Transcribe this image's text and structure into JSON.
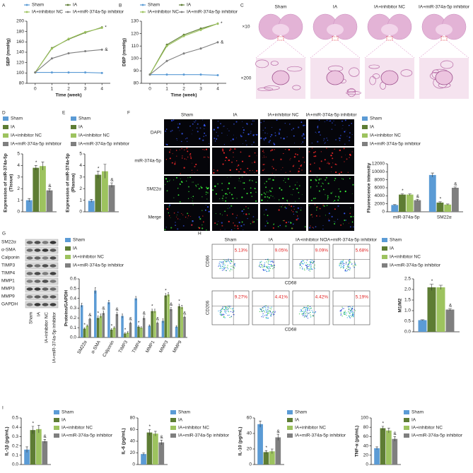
{
  "panel_labels": [
    "A",
    "B",
    "C",
    "D",
    "E",
    "F",
    "G",
    "H",
    "I"
  ],
  "histology": {
    "columns": [
      "Sham",
      "IA",
      "IA+inhibitor NC",
      "IA+miR-374a-5p inhibitor"
    ],
    "rows": [
      "×10",
      "×200"
    ]
  },
  "fluorescence": {
    "columns": [
      "Sham",
      "IA",
      "IA+inhibitor NC",
      "IA+miR-374a-5p inhibitor"
    ],
    "rows": [
      "DAPI",
      "miR-374a-5p",
      "SM22α",
      "Merge"
    ]
  },
  "western_blot": {
    "proteins": [
      "SM22α",
      "α-SMA",
      "Calponin",
      "TIMP3",
      "TIMP4",
      "MMP1",
      "MMP3",
      "MMP9",
      "GAPDH"
    ],
    "groups": [
      "Sham",
      "IA",
      "IA+inhibitor NC",
      "IA+miR-374a-5p inhibitor"
    ]
  },
  "flow": {
    "columns": [
      "Sham",
      "IA",
      "IA+inhibitor NC",
      "IA+miR-374a-5p inhibitor"
    ],
    "y_labels": [
      "CD86",
      "CD206"
    ],
    "x_label": "CD68",
    "percentages": [
      [
        "5.13%",
        "9.05%",
        "9.09%",
        "5.68%"
      ],
      [
        "9.27%",
        "4.41%",
        "4.42%",
        "5.19%"
      ]
    ]
  },
  "chart_data": [
    {
      "type": "line",
      "ylabel": "SBP (mmHg)",
      "xlabel": "Time (week)",
      "x": [
        0,
        1,
        2,
        3,
        4
      ],
      "xlim": [
        -0.5,
        4.5
      ],
      "xticks": [
        0,
        1,
        2,
        3,
        4
      ],
      "ylim": [
        80,
        200
      ],
      "yticks": [
        80,
        100,
        120,
        140,
        160,
        180,
        200
      ],
      "series": [
        {
          "name": "Sham",
          "color": "#5b9bd5",
          "values": [
            101,
            101,
            101,
            101,
            100
          ],
          "errors": [
            1,
            1,
            1,
            1,
            1
          ]
        },
        {
          "name": "IA",
          "color": "#5e7d34",
          "values": [
            101,
            148,
            165,
            178,
            188
          ],
          "errors": [
            1,
            2,
            2,
            2,
            2
          ],
          "markers": [
            null,
            null,
            null,
            null,
            "*"
          ]
        },
        {
          "name": "IA+inhibitor NC",
          "color": "#9dc35f",
          "values": [
            101,
            147,
            166,
            179,
            187
          ],
          "errors": [
            1,
            2,
            2,
            2,
            2
          ]
        },
        {
          "name": "IA+miR-374a-5p inhibitor",
          "color": "#7f7f7f",
          "values": [
            101,
            128,
            138,
            142,
            145
          ],
          "errors": [
            1,
            2,
            2,
            2,
            2
          ],
          "markers": [
            null,
            null,
            null,
            null,
            "&"
          ]
        }
      ]
    },
    {
      "type": "line",
      "ylabel": "DBP (mmHg)",
      "xlabel": "Time (week)",
      "x": [
        0,
        1,
        2,
        3,
        4
      ],
      "xlim": [
        -0.5,
        4.5
      ],
      "xticks": [
        0,
        1,
        2,
        3,
        4
      ],
      "ylim": [
        80,
        130
      ],
      "yticks": [
        80,
        90,
        100,
        110,
        120,
        130
      ],
      "series": [
        {
          "name": "Sham",
          "color": "#5b9bd5",
          "values": [
            87,
            87,
            87,
            87,
            86.5
          ],
          "errors": [
            0.5,
            0.5,
            0.5,
            0.5,
            0.5
          ]
        },
        {
          "name": "IA",
          "color": "#5e7d34",
          "values": [
            87,
            111,
            119,
            124,
            128
          ],
          "errors": [
            0.5,
            1,
            1,
            1,
            1
          ],
          "markers": [
            null,
            null,
            null,
            null,
            "*"
          ]
        },
        {
          "name": "IA+inhibitor NC",
          "color": "#9dc35f",
          "values": [
            87,
            110,
            118,
            123,
            128
          ],
          "errors": [
            0.5,
            1,
            1,
            1,
            1
          ]
        },
        {
          "name": "IA+miR-374a-5p inhibitor",
          "color": "#7f7f7f",
          "values": [
            87,
            98,
            104,
            108,
            113
          ],
          "errors": [
            0.5,
            1,
            1,
            1,
            1
          ],
          "markers": [
            null,
            null,
            null,
            null,
            "&"
          ]
        }
      ]
    },
    {
      "type": "bar",
      "ylabel": [
        "Expression of miR-374a-5p",
        "(Tissue)"
      ],
      "ylim": [
        0,
        5
      ],
      "yticks": [
        0,
        1,
        2,
        3,
        4,
        5
      ],
      "series": [
        {
          "name": "Sham",
          "color": "#5b9bd5",
          "values": [
            1.0
          ],
          "errors": [
            0.15
          ]
        },
        {
          "name": "IA",
          "color": "#5e7d34",
          "values": [
            3.8
          ],
          "errors": [
            0.2
          ],
          "markers": [
            "*"
          ]
        },
        {
          "name": "IA+inhibitor NC",
          "color": "#9dc35f",
          "values": [
            3.95
          ],
          "errors": [
            0.35
          ]
        },
        {
          "name": "IA+miR-374a-5p inhibitor",
          "color": "#7f7f7f",
          "values": [
            1.85
          ],
          "errors": [
            0.15
          ],
          "markers": [
            "&"
          ]
        }
      ]
    },
    {
      "type": "bar",
      "ylabel": [
        "Expression of miR-374a-5p",
        "(Plasma)"
      ],
      "ylim": [
        0,
        5
      ],
      "yticks": [
        0,
        1,
        2,
        3,
        4,
        5
      ],
      "series": [
        {
          "name": "Sham",
          "color": "#5b9bd5",
          "values": [
            0.95
          ],
          "errors": [
            0.12
          ]
        },
        {
          "name": "IA",
          "color": "#5e7d34",
          "values": [
            3.2
          ],
          "errors": [
            0.3
          ],
          "markers": [
            "*"
          ]
        },
        {
          "name": "IA+inhibitor NC",
          "color": "#9dc35f",
          "values": [
            3.5
          ],
          "errors": [
            0.6
          ]
        },
        {
          "name": "IA+miR-374a-5p inhibitor",
          "color": "#7f7f7f",
          "values": [
            2.3
          ],
          "errors": [
            0.2
          ],
          "markers": [
            "&"
          ]
        }
      ]
    },
    {
      "type": "bar",
      "ylabel": "Fluorescence intensity",
      "categories": [
        "miR-374a-5p",
        "SM22α"
      ],
      "ylim": [
        0,
        12000
      ],
      "yticks": [
        0,
        2000,
        4000,
        6000,
        8000,
        10000,
        12000
      ],
      "series": [
        {
          "name": "Sham",
          "color": "#5b9bd5",
          "values": [
            1700,
            9200
          ],
          "errors": [
            100,
            500
          ]
        },
        {
          "name": "IA",
          "color": "#5e7d34",
          "values": [
            4300,
            2300
          ],
          "errors": [
            200,
            200
          ],
          "markers": [
            "*",
            "*"
          ]
        },
        {
          "name": "IA+inhibitor NC",
          "color": "#9dc35f",
          "values": [
            4300,
            1800
          ],
          "errors": [
            200,
            150
          ]
        },
        {
          "name": "IA+miR-374a-5p inhibitor",
          "color": "#7f7f7f",
          "values": [
            2900,
            6000
          ],
          "errors": [
            250,
            200
          ],
          "markers": [
            "&",
            "&"
          ]
        }
      ]
    },
    {
      "type": "bar",
      "ylabel": "Proteins/GAPDH",
      "categories": [
        "SM22α",
        "α-SMA",
        "Calponin",
        "TIMP3",
        "TIMP4",
        "MMP1",
        "MMP3",
        "MMP9"
      ],
      "ylim": [
        0,
        0.6
      ],
      "yticks": [
        {
          "value": 0,
          "label": "0.0"
        },
        0.1,
        0.2,
        0.3,
        0.4,
        0.5,
        0.6
      ],
      "series": [
        {
          "name": "Sham",
          "color": "#5b9bd5",
          "values": [
            0.33,
            0.48,
            0.36,
            0.22,
            0.4,
            0.12,
            0.17,
            0.11
          ],
          "errors": [
            0.02,
            0.03,
            0.02,
            0.02,
            0.02,
            0.01,
            0.02,
            0.01
          ]
        },
        {
          "name": "IA",
          "color": "#5e7d34",
          "values": [
            0.09,
            0.2,
            0.08,
            0.04,
            0.11,
            0.27,
            0.43,
            0.32
          ],
          "errors": [
            0.01,
            0.02,
            0.01,
            0.01,
            0.01,
            0.02,
            0.02,
            0.02
          ],
          "markers": [
            "*",
            "*",
            "*",
            "*",
            "*",
            "*",
            "*",
            "*"
          ]
        },
        {
          "name": "IA+inhibitor NC",
          "color": "#9dc35f",
          "values": [
            0.12,
            0.22,
            0.1,
            0.05,
            0.1,
            0.27,
            0.44,
            0.31
          ],
          "errors": [
            0.01,
            0.02,
            0.01,
            0.01,
            0.01,
            0.02,
            0.02,
            0.02
          ]
        },
        {
          "name": "IA+miR-374a-5p inhibitor",
          "color": "#7f7f7f",
          "values": [
            0.19,
            0.25,
            0.24,
            0.15,
            0.2,
            0.15,
            0.29,
            0.21
          ],
          "errors": [
            0.01,
            0.02,
            0.02,
            0.01,
            0.02,
            0.01,
            0.02,
            0.01
          ],
          "markers": [
            "&",
            "&",
            "&",
            "&",
            "&",
            "&",
            "&",
            "&"
          ]
        }
      ]
    },
    {
      "type": "bar",
      "ylabel": "M1/M2",
      "ylim": [
        0,
        2.5
      ],
      "yticks": [
        {
          "value": 0,
          "label": "0.0"
        },
        0.5,
        {
          "value": 1,
          "label": "1.0"
        },
        1.5,
        {
          "value": 2,
          "label": "2.0"
        },
        2.5
      ],
      "series": [
        {
          "name": "Sham",
          "color": "#5b9bd5",
          "values": [
            0.55
          ],
          "errors": [
            0.02
          ]
        },
        {
          "name": "IA",
          "color": "#5e7d34",
          "values": [
            2.1
          ],
          "errors": [
            0.15
          ],
          "markers": [
            "*"
          ]
        },
        {
          "name": "IA+inhibitor NC",
          "color": "#9dc35f",
          "values": [
            2.1
          ],
          "errors": [
            0.1
          ]
        },
        {
          "name": "IA+miR-374a-5p inhibitor",
          "color": "#7f7f7f",
          "values": [
            1.05
          ],
          "errors": [
            0.05
          ],
          "markers": [
            "&"
          ]
        }
      ]
    },
    {
      "type": "bar",
      "ylabel": "IL-1β (pg/mL)",
      "ylim": [
        0,
        0.5
      ],
      "yticks": [
        {
          "value": 0,
          "label": "0.0"
        },
        0.1,
        0.2,
        0.3,
        0.4,
        0.5
      ],
      "series": [
        {
          "name": "Sham",
          "color": "#5b9bd5",
          "values": [
            0.16
          ],
          "errors": [
            0.03
          ]
        },
        {
          "name": "IA",
          "color": "#5e7d34",
          "values": [
            0.37
          ],
          "errors": [
            0.04
          ],
          "markers": [
            "*"
          ]
        },
        {
          "name": "IA+inhibitor NC",
          "color": "#9dc35f",
          "values": [
            0.38
          ],
          "errors": [
            0.04
          ]
        },
        {
          "name": "IA+miR-374a-5p inhibitor",
          "color": "#7f7f7f",
          "values": [
            0.25
          ],
          "errors": [
            0.02
          ],
          "markers": [
            "&"
          ]
        }
      ]
    },
    {
      "type": "bar",
      "ylabel": "IL-6 (pg/mL)",
      "ylim": [
        0,
        80
      ],
      "yticks": [
        0,
        20,
        40,
        60,
        80
      ],
      "series": [
        {
          "name": "Sham",
          "color": "#5b9bd5",
          "values": [
            18
          ],
          "errors": [
            2
          ]
        },
        {
          "name": "IA",
          "color": "#5e7d34",
          "values": [
            55
          ],
          "errors": [
            5
          ],
          "markers": [
            "*"
          ]
        },
        {
          "name": "IA+inhibitor NC",
          "color": "#9dc35f",
          "values": [
            53
          ],
          "errors": [
            4
          ]
        },
        {
          "name": "IA+miR-374a-5p inhibitor",
          "color": "#7f7f7f",
          "values": [
            38
          ],
          "errors": [
            4
          ],
          "markers": [
            "&"
          ]
        }
      ]
    },
    {
      "type": "bar",
      "ylabel": "IL-10 (pg/mL)",
      "ylim": [
        0,
        60
      ],
      "yticks": [
        0,
        20,
        40,
        60
      ],
      "series": [
        {
          "name": "Sham",
          "color": "#5b9bd5",
          "values": [
            52
          ],
          "errors": [
            4
          ]
        },
        {
          "name": "IA",
          "color": "#5e7d34",
          "values": [
            16
          ],
          "errors": [
            2
          ],
          "markers": [
            "*"
          ]
        },
        {
          "name": "IA+inhibitor NC",
          "color": "#9dc35f",
          "values": [
            17
          ],
          "errors": [
            3
          ]
        },
        {
          "name": "IA+miR-374a-5p inhibitor",
          "color": "#7f7f7f",
          "values": [
            35
          ],
          "errors": [
            4
          ],
          "markers": [
            "&"
          ]
        }
      ]
    },
    {
      "type": "bar",
      "ylabel": "TNF-α (pg/mL)",
      "ylim": [
        0,
        100
      ],
      "yticks": [
        0,
        20,
        40,
        60,
        80,
        100
      ],
      "series": [
        {
          "name": "Sham",
          "color": "#5b9bd5",
          "values": [
            35
          ],
          "errors": [
            3
          ]
        },
        {
          "name": "IA",
          "color": "#5e7d34",
          "values": [
            78
          ],
          "errors": [
            4
          ],
          "markers": [
            "*"
          ]
        },
        {
          "name": "IA+inhibitor NC",
          "color": "#9dc35f",
          "values": [
            73
          ],
          "errors": [
            5
          ]
        },
        {
          "name": "IA+miR-374a-5p inhibitor",
          "color": "#7f7f7f",
          "values": [
            55
          ],
          "errors": [
            5
          ],
          "markers": [
            "&"
          ]
        }
      ]
    }
  ]
}
